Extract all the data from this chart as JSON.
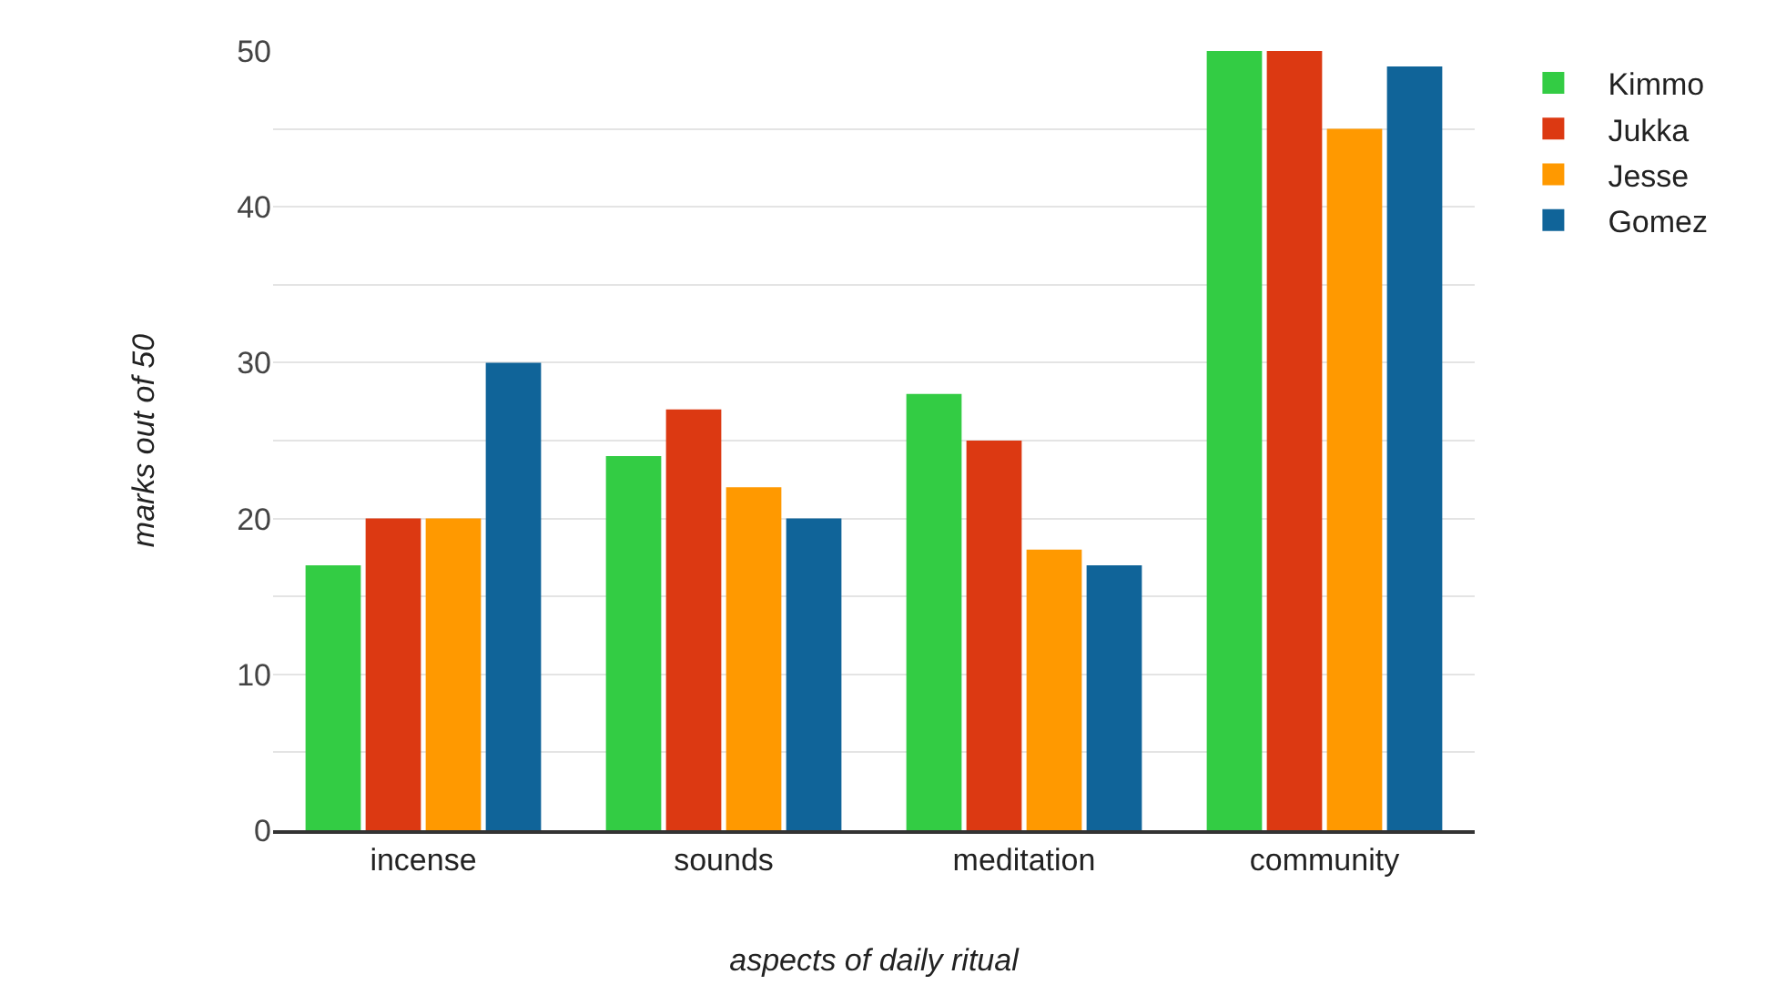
{
  "chart_data": {
    "type": "bar",
    "xlabel": "aspects of daily ritual",
    "ylabel": "marks out of 50",
    "categories": [
      "incense",
      "sounds",
      "meditation",
      "community"
    ],
    "series": [
      {
        "name": "Kimmo",
        "color": "#33cc44",
        "values": [
          17,
          24,
          28,
          50
        ]
      },
      {
        "name": "Jukka",
        "color": "#dc3912",
        "values": [
          20,
          27,
          25,
          50
        ]
      },
      {
        "name": "Jesse",
        "color": "#ff9900",
        "values": [
          20,
          22,
          18,
          45
        ]
      },
      {
        "name": "Gomez",
        "color": "#106499",
        "values": [
          30,
          20,
          17,
          49
        ]
      }
    ],
    "ylim": [
      0,
      50
    ],
    "yticks": [
      0,
      {
        "value": 5,
        "label": null
      },
      10,
      {
        "value": 15,
        "label": null
      },
      20,
      {
        "value": 25,
        "label": null
      },
      30,
      {
        "value": 35,
        "label": null
      },
      40,
      {
        "value": 45,
        "label": null
      },
      50
    ],
    "grid": "y",
    "legend": "top right"
  }
}
